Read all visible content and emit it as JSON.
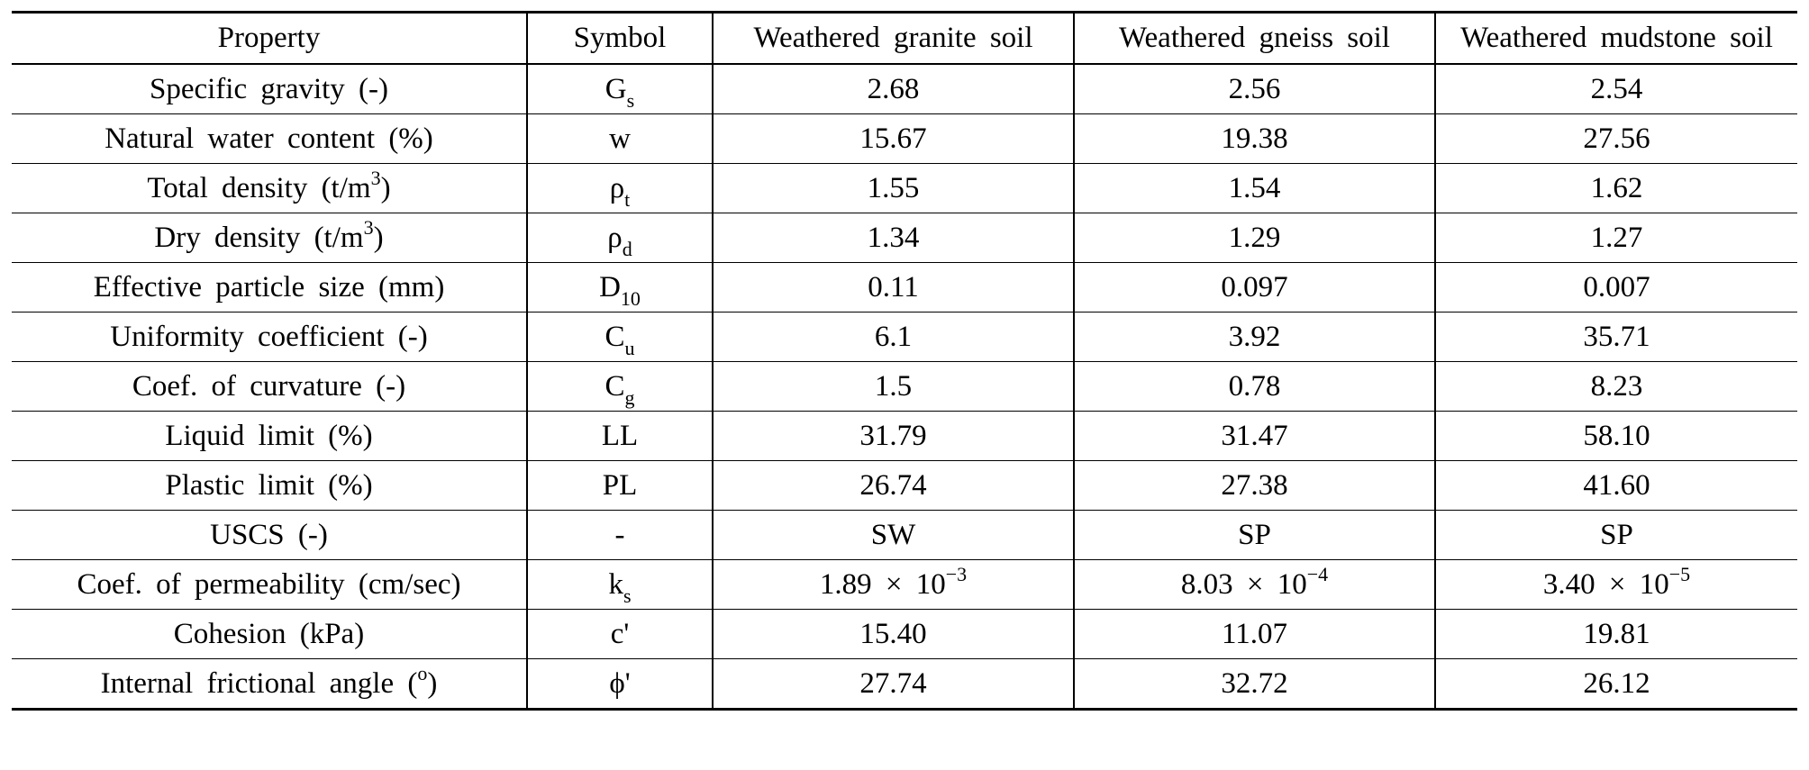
{
  "table": {
    "headers": [
      "Property",
      "Symbol",
      "Weathered granite soil",
      "Weathered gneiss soil",
      "Weathered mudstone soil"
    ],
    "rows": [
      {
        "property": "Specific gravity (-)",
        "symbol": "G",
        "symbol_sub": "s",
        "values": [
          "2.68",
          "2.56",
          "2.54"
        ]
      },
      {
        "property": "Natural water content (%)",
        "symbol": "w",
        "values": [
          "15.67",
          "19.38",
          "27.56"
        ]
      },
      {
        "property": "Total density (t/m",
        "property_sup": "3",
        "property_end": ")",
        "symbol": "ρ",
        "symbol_sub": "t",
        "values": [
          "1.55",
          "1.54",
          "1.62"
        ]
      },
      {
        "property": "Dry density (t/m",
        "property_sup": "3",
        "property_end": ")",
        "symbol": "ρ",
        "symbol_sub": "d",
        "values": [
          "1.34",
          "1.29",
          "1.27"
        ]
      },
      {
        "property": "Effective particle size (mm)",
        "symbol": "D",
        "symbol_sub": "10",
        "values": [
          "0.11",
          "0.097",
          "0.007"
        ]
      },
      {
        "property": "Uniformity coefficient (-)",
        "symbol": "C",
        "symbol_sub": "u",
        "values": [
          "6.1",
          "3.92",
          "35.71"
        ]
      },
      {
        "property": "Coef. of curvature (-)",
        "symbol": "C",
        "symbol_sub": "g",
        "values": [
          "1.5",
          "0.78",
          "8.23"
        ]
      },
      {
        "property": "Liquid limit (%)",
        "symbol": "LL",
        "values": [
          "31.79",
          "31.47",
          "58.10"
        ]
      },
      {
        "property": "Plastic limit (%)",
        "symbol": "PL",
        "values": [
          "26.74",
          "27.38",
          "41.60"
        ]
      },
      {
        "property": "USCS (-)",
        "symbol": "-",
        "values": [
          "SW",
          "SP",
          "SP"
        ]
      },
      {
        "property": "Coef. of permeability (cm/sec)",
        "symbol": "k",
        "symbol_sub": "s",
        "values": [
          "1.89 × 10",
          "8.03 × 10",
          "3.40 × 10"
        ],
        "value_sups": [
          "−3",
          "−4",
          "−5"
        ]
      },
      {
        "property": "Cohesion (kPa)",
        "symbol": "c'",
        "values": [
          "15.40",
          "11.07",
          "19.81"
        ]
      },
      {
        "property": "Internal frictional angle (",
        "property_sup": "o",
        "property_end": ")",
        "symbol": "ϕ'",
        "values": [
          "27.74",
          "32.72",
          "26.12"
        ]
      }
    ]
  }
}
